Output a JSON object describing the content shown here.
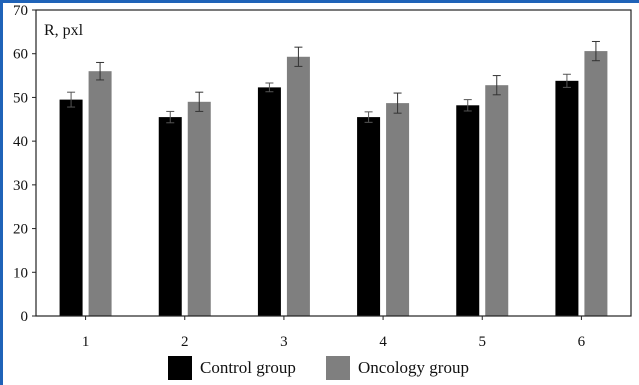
{
  "chart_data": {
    "type": "bar",
    "categories": [
      "1",
      "2",
      "3",
      "4",
      "5",
      "6"
    ],
    "series": [
      {
        "name": "Control group",
        "values": [
          49.5,
          45.5,
          52.3,
          45.5,
          48.2,
          53.8
        ],
        "errors": [
          1.7,
          1.3,
          1.0,
          1.2,
          1.3,
          1.5
        ],
        "color": "#000000"
      },
      {
        "name": "Oncology group",
        "values": [
          56.0,
          49.0,
          59.3,
          48.7,
          52.8,
          60.6
        ],
        "errors": [
          2.0,
          2.2,
          2.2,
          2.3,
          2.2,
          2.2
        ],
        "color": "#7f7f7f"
      }
    ],
    "ylabel": "R, pxl",
    "xlabel": "",
    "ylim": [
      0,
      70
    ],
    "yticks": [
      "0",
      "10",
      "20",
      "30",
      "40",
      "50",
      "60",
      "70"
    ],
    "grid": false,
    "legend_position": "bottom"
  }
}
